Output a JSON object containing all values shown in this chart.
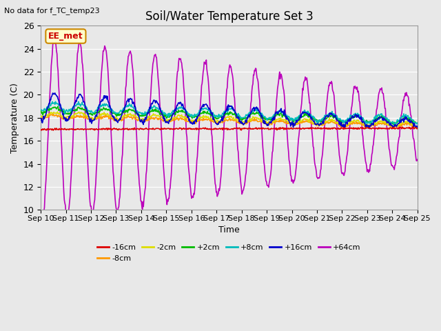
{
  "title": "Soil/Water Temperature Set 3",
  "xlabel": "Time",
  "ylabel": "Temperature (C)",
  "note": "No data for f_TC_temp23",
  "annotation": "EE_met",
  "ylim": [
    10,
    26
  ],
  "x_tick_labels": [
    "Sep 10",
    "Sep 11",
    "Sep 12",
    "Sep 13",
    "Sep 14",
    "Sep 15",
    "Sep 16",
    "Sep 17",
    "Sep 18",
    "Sep 19",
    "Sep 20",
    "Sep 21",
    "Sep 22",
    "Sep 23",
    "Sep 24",
    "Sep 25"
  ],
  "series": {
    "-16cm": {
      "color": "#dd0000",
      "linewidth": 1.2
    },
    "-8cm": {
      "color": "#ff9900",
      "linewidth": 1.2
    },
    "-2cm": {
      "color": "#dddd00",
      "linewidth": 1.2
    },
    "+2cm": {
      "color": "#00bb00",
      "linewidth": 1.2
    },
    "+8cm": {
      "color": "#00bbbb",
      "linewidth": 1.2
    },
    "+16cm": {
      "color": "#0000cc",
      "linewidth": 1.2
    },
    "+64cm": {
      "color": "#bb00bb",
      "linewidth": 1.2
    }
  },
  "bg_color": "#e8e8e8",
  "annotation_box_color": "#ffffcc",
  "annotation_border_color": "#cc8800",
  "annotation_text_color": "#cc0000",
  "title_fontsize": 12,
  "axis_fontsize": 9,
  "legend_fontsize": 8,
  "note_fontsize": 8
}
